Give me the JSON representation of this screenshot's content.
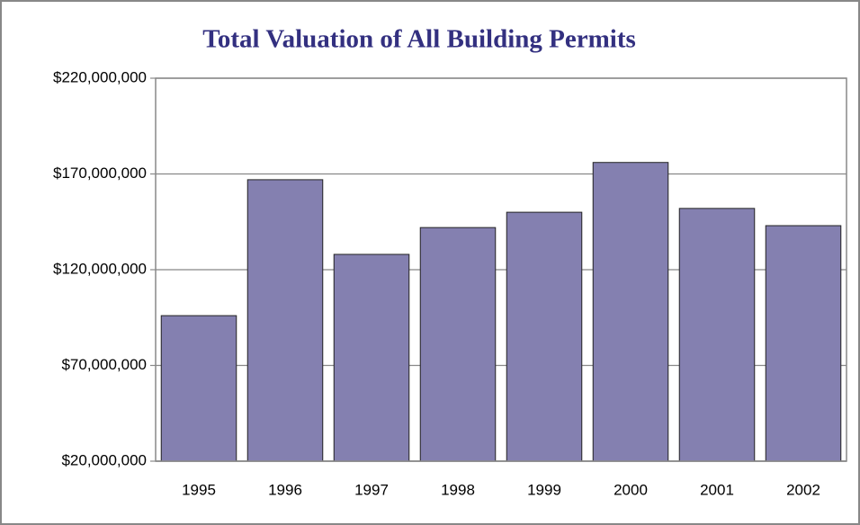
{
  "chart_data": {
    "type": "bar",
    "title": "Total Valuation of All Building Permits",
    "categories": [
      "1995",
      "1996",
      "1997",
      "1998",
      "1999",
      "2000",
      "2001",
      "2002"
    ],
    "values": [
      96000000,
      167000000,
      128000000,
      142000000,
      150000000,
      176000000,
      152000000,
      143000000
    ],
    "color": "#8480b0",
    "ylim": [
      20000000,
      220000000
    ],
    "yticks": [
      {
        "value": 20000000,
        "label": "$20,000,000"
      },
      {
        "value": 70000000,
        "label": "$70,000,000"
      },
      {
        "value": 120000000,
        "label": "$120,000,000"
      },
      {
        "value": 170000000,
        "label": "$170,000,000"
      },
      {
        "value": 220000000,
        "label": "$220,000,000"
      }
    ],
    "grid": true
  }
}
